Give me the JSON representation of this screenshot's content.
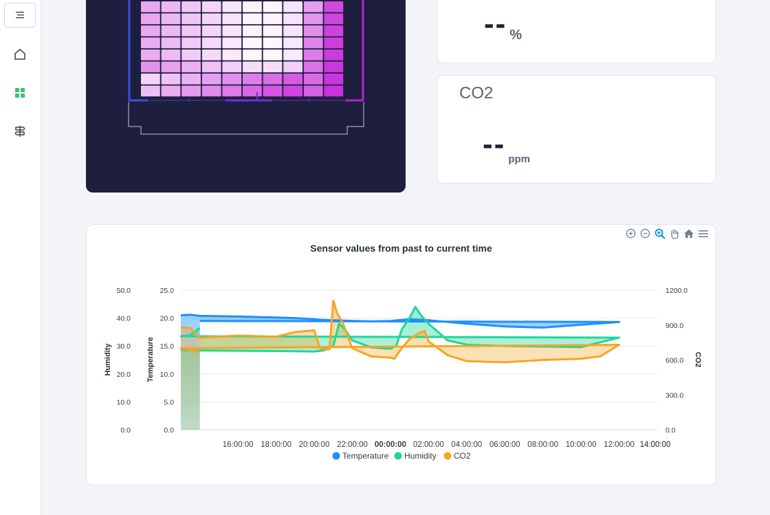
{
  "sidebar": {
    "items": [
      {
        "icon": "menu-icon"
      },
      {
        "icon": "home-icon"
      },
      {
        "icon": "dashboard-grid-icon",
        "active_color": "#3fbf7f"
      },
      {
        "icon": "signpost-icon"
      }
    ]
  },
  "humidity_card": {
    "value": "--",
    "unit": "%"
  },
  "co2_card": {
    "title": "CO2",
    "value": "--",
    "unit": "ppm"
  },
  "chart": {
    "title": "Sensor values from past to current time",
    "toolbar": [
      "zoom-in-icon",
      "zoom-out-icon",
      "zoom-selection-icon",
      "pan-hand-icon",
      "reset-home-icon",
      "menu-icon"
    ]
  },
  "chart_data": {
    "type": "area",
    "title": "Sensor values from past to current time",
    "x": [
      "14:00:00",
      "16:00:00",
      "18:00:00",
      "20:00:00",
      "22:00:00",
      "00:00:00",
      "02:00:00",
      "04:00:00",
      "06:00:00",
      "08:00:00",
      "10:00:00",
      "12:00:00",
      "14:00:00"
    ],
    "y_axes": [
      {
        "label": "Humidity",
        "ticks": [
          "50.0",
          "40.0",
          "30.0",
          "20.0",
          "10.0",
          "0.0"
        ],
        "ylim": [
          0,
          50
        ]
      },
      {
        "label": "Temperature",
        "ticks": [
          "25.0",
          "20.0",
          "15.0",
          "10.0",
          "5.0",
          "0.0"
        ],
        "ylim": [
          0,
          25
        ]
      },
      {
        "label": "CO2",
        "ticks": [
          "1200.0",
          "900.0",
          "600.0",
          "300.0",
          "0.0"
        ],
        "ylim": [
          0,
          1200
        ]
      }
    ],
    "series": [
      {
        "name": "Temperature",
        "axis": "Temperature",
        "color": "#1e90ff",
        "points": [
          [
            13.0,
            20.5
          ],
          [
            13.5,
            20.6
          ],
          [
            14,
            20.4
          ],
          [
            16,
            20.3
          ],
          [
            18,
            20.1
          ],
          [
            19,
            20.0
          ],
          [
            20,
            19.8
          ],
          [
            20.3,
            19.7
          ],
          [
            21,
            19.6
          ],
          [
            23,
            19.4
          ],
          [
            0,
            19.5
          ],
          [
            1,
            19.8
          ],
          [
            2,
            19.6
          ],
          [
            4,
            19.0
          ],
          [
            6,
            18.5
          ],
          [
            8,
            18.3
          ],
          [
            10,
            18.8
          ],
          [
            12,
            19.3
          ],
          [
            14,
            19.5
          ]
        ]
      },
      {
        "name": "Humidity",
        "axis": "Humidity",
        "color": "#21d59b",
        "points": [
          [
            13.0,
            28.6
          ],
          [
            14,
            28.4
          ],
          [
            16,
            28.3
          ],
          [
            18,
            28.2
          ],
          [
            20,
            28.0
          ],
          [
            20.5,
            28.4
          ],
          [
            21,
            30.0
          ],
          [
            21.3,
            38.0
          ],
          [
            21.6,
            36.0
          ],
          [
            22,
            32.0
          ],
          [
            23,
            29.5
          ],
          [
            0,
            29.0
          ],
          [
            0.3,
            30.0
          ],
          [
            0.6,
            36.0
          ],
          [
            1,
            40.0
          ],
          [
            1.3,
            44.0
          ],
          [
            1.6,
            41.0
          ],
          [
            2,
            38.0
          ],
          [
            3,
            32.0
          ],
          [
            4,
            30.5
          ],
          [
            6,
            30.0
          ],
          [
            8,
            29.8
          ],
          [
            10,
            29.6
          ],
          [
            12,
            33.0
          ],
          [
            13,
            33.5
          ],
          [
            13.5,
            33.8
          ],
          [
            14,
            36.5
          ]
        ]
      },
      {
        "name": "CO2",
        "axis": "CO2",
        "color": "#f5a623",
        "points": [
          [
            13.0,
            880
          ],
          [
            13.5,
            875
          ],
          [
            14,
            790
          ],
          [
            16,
            810
          ],
          [
            18,
            800
          ],
          [
            19,
            840
          ],
          [
            20,
            855
          ],
          [
            20.3,
            700
          ],
          [
            20.8,
            690
          ],
          [
            21,
            1110
          ],
          [
            21.2,
            1000
          ],
          [
            21.5,
            920
          ],
          [
            22,
            700
          ],
          [
            23,
            630
          ],
          [
            0,
            620
          ],
          [
            0.2,
            610
          ],
          [
            0.5,
            680
          ],
          [
            1,
            780
          ],
          [
            1.5,
            830
          ],
          [
            1.8,
            850
          ],
          [
            2,
            760
          ],
          [
            3,
            640
          ],
          [
            4,
            590
          ],
          [
            6,
            580
          ],
          [
            8,
            600
          ],
          [
            10,
            610
          ],
          [
            11,
            630
          ],
          [
            12,
            730
          ],
          [
            13,
            700
          ],
          [
            14,
            670
          ]
        ]
      }
    ],
    "legend": [
      "Temperature",
      "Humidity",
      "CO2"
    ],
    "legend_placement": "bottom",
    "grid": true
  }
}
